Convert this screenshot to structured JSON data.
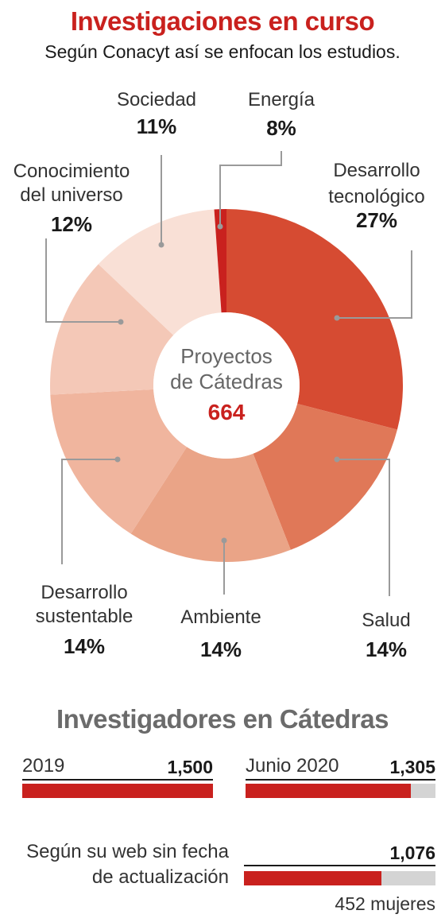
{
  "chart_data": [
    {
      "type": "pie",
      "title": "Investigaciones en curso",
      "subtitle": "Según Conacyt así se enfocan los estudios.",
      "center_label": [
        "Proyectos",
        "de Cátedras"
      ],
      "center_value": "664",
      "slices": [
        {
          "label": [
            "Desarrollo",
            "tecnológico"
          ],
          "value": 27,
          "value_label": "27%",
          "color": "#d64b32"
        },
        {
          "label": [
            "Salud"
          ],
          "value": 14,
          "value_label": "14%",
          "color": "#e07858"
        },
        {
          "label": [
            "Ambiente"
          ],
          "value": 14,
          "value_label": "14%",
          "color": "#eaa487"
        },
        {
          "label": [
            "Desarrollo",
            "sustentable"
          ],
          "value": 14,
          "value_label": "14%",
          "color": "#f0b59e"
        },
        {
          "label": [
            "Conocimiento",
            "del universo"
          ],
          "value": 12,
          "value_label": "12%",
          "color": "#f4c8b7"
        },
        {
          "label": [
            "Sociedad"
          ],
          "value": 11,
          "value_label": "11%",
          "color": "#f9e0d6"
        },
        {
          "label": [
            "Energía"
          ],
          "value": 8,
          "value_label": "8%",
          "color": "#c9211e",
          "angle_deg": 4
        }
      ]
    },
    {
      "type": "bar",
      "title": "Investigadores en Cátedras",
      "max": 1500,
      "bars": [
        {
          "label": [
            "2019"
          ],
          "value": 1500,
          "value_label": "1,500"
        },
        {
          "label": [
            "Junio 2020"
          ],
          "value": 1305,
          "value_label": "1,305"
        },
        {
          "label": [
            "Según su web sin fecha",
            "de actualización"
          ],
          "value": 1076,
          "value_label": "1,076",
          "note": "452 mujeres"
        }
      ]
    }
  ],
  "colors": {
    "accent": "#c9211e",
    "track": "#d4d4d4",
    "leader": "#9a9a9a"
  }
}
